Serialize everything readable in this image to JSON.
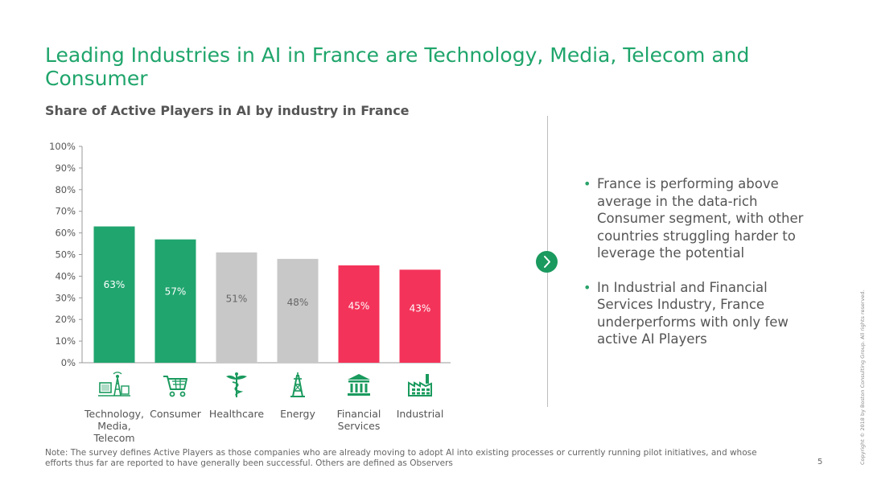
{
  "title": "Leading Industries in AI in France are Technology, Media, Telecom and Consumer",
  "subtitle": "Share of Active Players in AI by industry in France",
  "chart_data": {
    "type": "bar",
    "title": "Share of Active Players in AI by industry in France",
    "categories": [
      "Technology, Media, Telecom",
      "Consumer",
      "Healthcare",
      "Energy",
      "Financial Services",
      "Industrial"
    ],
    "category_lines": [
      [
        "Technology,",
        "Media,",
        "Telecom"
      ],
      [
        "Consumer"
      ],
      [
        "Healthcare"
      ],
      [
        "Energy"
      ],
      [
        "Financial",
        "Services"
      ],
      [
        "Industrial"
      ]
    ],
    "values": [
      63,
      57,
      51,
      48,
      45,
      43
    ],
    "value_labels": [
      "63%",
      "57%",
      "51%",
      "48%",
      "45%",
      "43%"
    ],
    "bar_colors": [
      "#20a56e",
      "#20a56e",
      "#c9c8c9",
      "#c9c8c9",
      "#f4335a",
      "#f4335a"
    ],
    "label_colors": [
      "#ffffff",
      "#ffffff",
      "#666666",
      "#666666",
      "#ffffff",
      "#ffffff"
    ],
    "icons": [
      "tower-icon",
      "shopping-cart-icon",
      "caduceus-icon",
      "oil-rig-icon",
      "bank-icon",
      "factory-icon"
    ],
    "ylim": [
      0,
      100
    ],
    "yticks": [
      0,
      10,
      20,
      30,
      40,
      50,
      60,
      70,
      80,
      90,
      100
    ],
    "ytick_labels": [
      "0%",
      "10%",
      "20%",
      "30%",
      "40%",
      "50%",
      "60%",
      "70%",
      "80%",
      "90%",
      "100%"
    ],
    "xlabel": "",
    "ylabel": "",
    "grid": false,
    "legend": "none"
  },
  "bullets": [
    "France is performing above average in the data-rich Consumer segment, with other countries struggling harder to leverage the potential",
    "In Industrial and Financial Services Industry, France underperforms with only few active AI Players"
  ],
  "bullet_marker": "•",
  "note": "Note: The survey defines Active Players as those companies who are already moving to adopt AI into existing processes or currently running pilot initiatives, and whose efforts thus far are reported to have generally been successful. Others are defined as Observers",
  "page_number": "5",
  "copyright": "Copyright © 2018 by Boston Consulting Group. All rights reserved.",
  "colors": {
    "accent": "#1fa56b",
    "green_bar": "#20a56e",
    "grey_bar": "#c9c8c9",
    "red_bar": "#f4335a",
    "icon_green": "#1a9a5e"
  }
}
